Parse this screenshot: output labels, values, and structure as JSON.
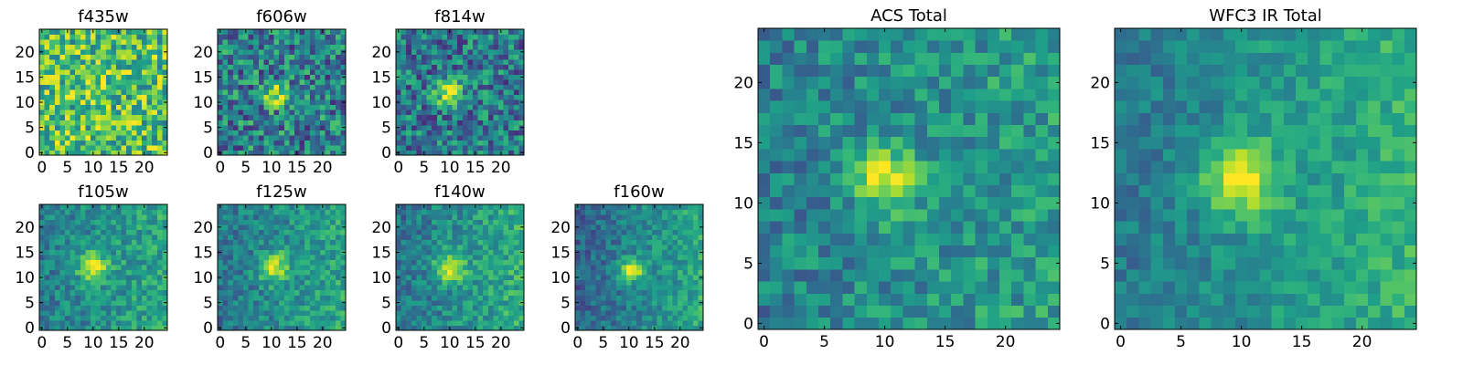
{
  "figure": {
    "colormap": "viridis",
    "image_size": [
      25,
      25
    ]
  },
  "chart_data": [
    {
      "type": "heatmap",
      "title": "f435w",
      "x_ticks": [
        "0",
        "5",
        "10",
        "15",
        "20"
      ],
      "y_ticks": [
        "0",
        "5",
        "10",
        "15",
        "20"
      ],
      "xlim": [
        0,
        25
      ],
      "ylim": [
        0,
        25
      ],
      "source": {
        "cx": 11,
        "cy": 12.5,
        "sigma": 1.6,
        "amp": 0.25
      },
      "base": 0.7,
      "noise": 0.3,
      "gradient_right": 0.0
    },
    {
      "type": "heatmap",
      "title": "f606w",
      "x_ticks": [
        "0",
        "5",
        "10",
        "15",
        "20"
      ],
      "y_ticks": [
        "0",
        "5",
        "10",
        "15",
        "20"
      ],
      "xlim": [
        0,
        25
      ],
      "ylim": [
        0,
        25
      ],
      "source": {
        "cx": 11,
        "cy": 12,
        "sigma": 1.6,
        "amp": 0.5
      },
      "base": 0.42,
      "noise": 0.3,
      "gradient_right": 0.0
    },
    {
      "type": "heatmap",
      "title": "f814w",
      "x_ticks": [
        "0",
        "5",
        "10",
        "15",
        "20"
      ],
      "y_ticks": [
        "0",
        "5",
        "10",
        "15",
        "20"
      ],
      "xlim": [
        0,
        25
      ],
      "ylim": [
        0,
        25
      ],
      "source": {
        "cx": 10.5,
        "cy": 12,
        "sigma": 1.8,
        "amp": 0.55
      },
      "base": 0.4,
      "noise": 0.28,
      "gradient_right": 0.0
    },
    {
      "type": "heatmap",
      "title": "f105w",
      "x_ticks": [
        "0",
        "5",
        "10",
        "15",
        "20"
      ],
      "y_ticks": [
        "0",
        "5",
        "10",
        "15",
        "20"
      ],
      "xlim": [
        0,
        25
      ],
      "ylim": [
        0,
        25
      ],
      "source": {
        "cx": 10.5,
        "cy": 12.5,
        "sigma": 2.0,
        "amp": 0.5
      },
      "base": 0.47,
      "noise": 0.16,
      "gradient_right": 0.18
    },
    {
      "type": "heatmap",
      "title": "f125w",
      "x_ticks": [
        "0",
        "5",
        "10",
        "15",
        "20"
      ],
      "y_ticks": [
        "0",
        "5",
        "10",
        "15",
        "20"
      ],
      "xlim": [
        0,
        25
      ],
      "ylim": [
        0,
        25
      ],
      "source": {
        "cx": 11,
        "cy": 12.5,
        "sigma": 2.0,
        "amp": 0.5
      },
      "base": 0.45,
      "noise": 0.16,
      "gradient_right": 0.2
    },
    {
      "type": "heatmap",
      "title": "f140w",
      "x_ticks": [
        "0",
        "5",
        "10",
        "15",
        "20"
      ],
      "y_ticks": [
        "0",
        "5",
        "10",
        "15",
        "20"
      ],
      "xlim": [
        0,
        25
      ],
      "ylim": [
        0,
        25
      ],
      "source": {
        "cx": 10.5,
        "cy": 12.5,
        "sigma": 2.0,
        "amp": 0.48
      },
      "base": 0.45,
      "noise": 0.16,
      "gradient_right": 0.25
    },
    {
      "type": "heatmap",
      "title": "f160w",
      "x_ticks": [
        "0",
        "5",
        "10",
        "15",
        "20"
      ],
      "y_ticks": [
        "0",
        "5",
        "10",
        "15",
        "20"
      ],
      "xlim": [
        0,
        25
      ],
      "ylim": [
        0,
        25
      ],
      "source": {
        "cx": 11,
        "cy": 12,
        "sigma": 1.6,
        "amp": 0.55
      },
      "base": 0.4,
      "noise": 0.14,
      "gradient_right": 0.3
    },
    {
      "type": "heatmap",
      "title": "ACS Total",
      "x_ticks": [
        "0",
        "5",
        "10",
        "15",
        "20"
      ],
      "y_ticks": [
        "0",
        "5",
        "10",
        "15",
        "20"
      ],
      "xlim": [
        0,
        25
      ],
      "ylim": [
        0,
        25
      ],
      "source": {
        "cx": 10.5,
        "cy": 12.5,
        "sigma": 1.8,
        "amp": 0.5
      },
      "base": 0.47,
      "noise": 0.18,
      "gradient_right": 0.12
    },
    {
      "type": "heatmap",
      "title": "WFC3 IR Total",
      "x_ticks": [
        "0",
        "5",
        "10",
        "15",
        "20"
      ],
      "y_ticks": [
        "0",
        "5",
        "10",
        "15",
        "20"
      ],
      "xlim": [
        0,
        25
      ],
      "ylim": [
        0,
        25
      ],
      "source": {
        "cx": 10.5,
        "cy": 12.5,
        "sigma": 2.1,
        "amp": 0.5
      },
      "base": 0.47,
      "noise": 0.12,
      "gradient_right": 0.25
    }
  ]
}
